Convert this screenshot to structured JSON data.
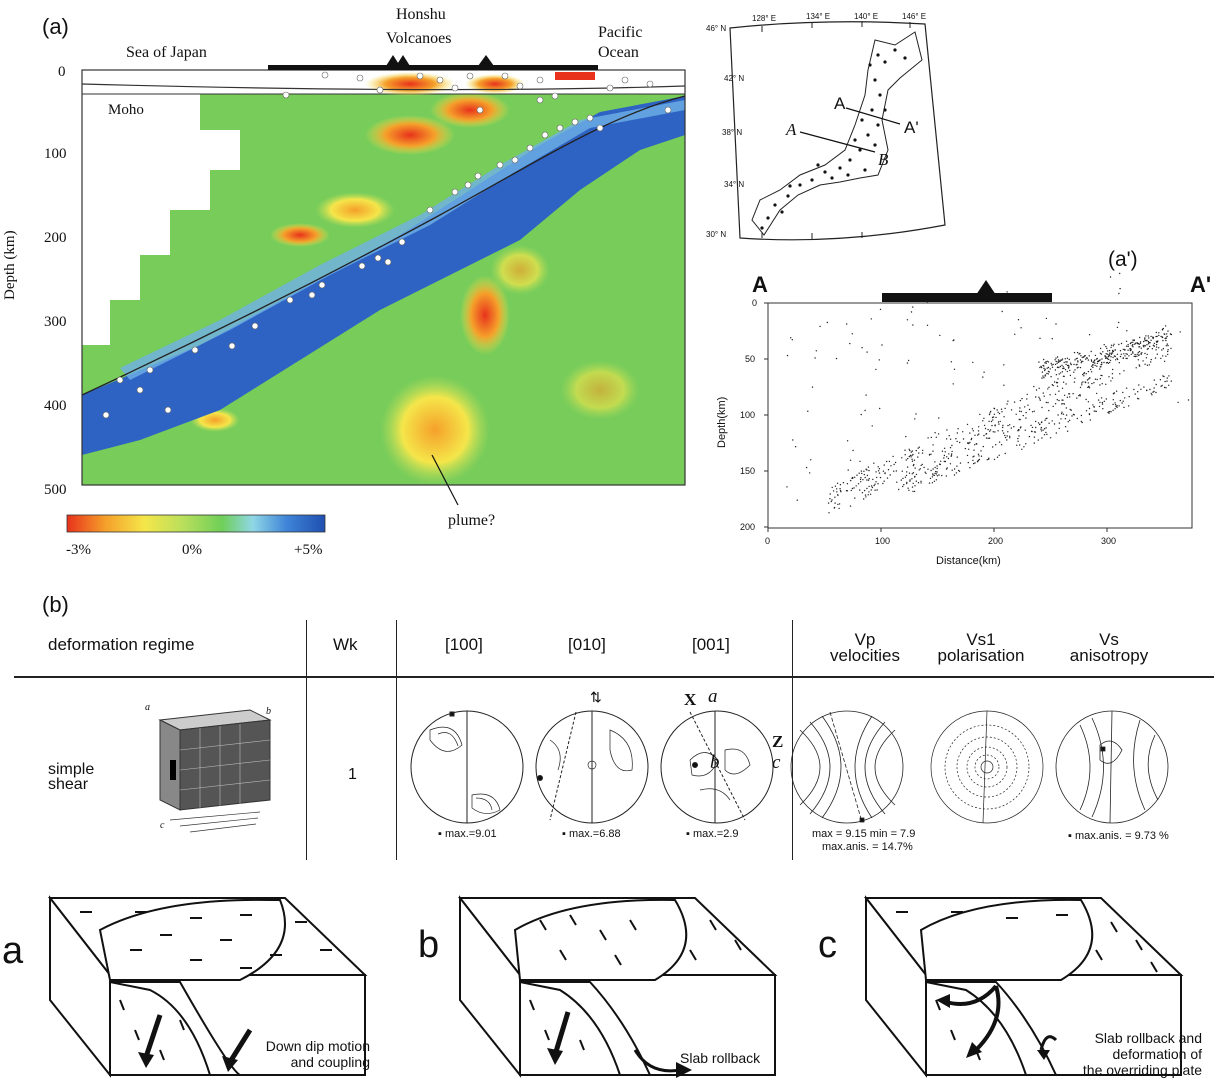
{
  "panel_a": {
    "label": "(a)",
    "sea_of_japan": "Sea of Japan",
    "honshu": "Honshu",
    "volcanoes": "Volcanoes",
    "pacific": "Pacific",
    "ocean": "Ocean",
    "moho": "Moho",
    "ylabel": "Depth (km)",
    "yticks": [
      "0",
      "100",
      "200",
      "300",
      "400",
      "500"
    ],
    "plume": "plume?",
    "colorbar": {
      "min": "-3%",
      "mid": "0%",
      "max": "+5%",
      "colors": [
        "#e8321c",
        "#f5a02a",
        "#f5e64a",
        "#b9df5c",
        "#6fcf58",
        "#8fd7e6",
        "#3f85d8",
        "#1f4fb0"
      ]
    }
  },
  "map": {
    "lon_labels": [
      "128° E",
      "134° E",
      "140° E",
      "146° E"
    ],
    "lat_labels": [
      "46° N",
      "42° N",
      "38° N",
      "34° N",
      "30° N"
    ],
    "section_labels": [
      "A",
      "A'",
      "A",
      "B"
    ]
  },
  "panel_a_prime": {
    "label": "(a')",
    "left_end": "A",
    "right_end": "A'",
    "ylabel": "Depth(km)",
    "xlabel": "Distance(km)",
    "xticks": [
      "0",
      "100",
      "200",
      "300"
    ],
    "yticks": [
      "0",
      "50",
      "100",
      "150",
      "200"
    ]
  },
  "panel_b": {
    "label": "(b)",
    "headers": {
      "regime": "deformation regime",
      "wk": "Wk",
      "h100": "[100]",
      "h010": "[010]",
      "h001": "[001]",
      "vp_1": "Vp",
      "vp_2": "velocities",
      "vs1_1": "Vs1",
      "vs1_2": "polarisation",
      "vs_1": "Vs",
      "vs_2": "anisotropy"
    },
    "row_regime_1": "simple",
    "row_regime_2": "shear",
    "wk_value": "1",
    "max_100": "max.=9.01",
    "max_010": "max.=6.88",
    "max_001": "max.=2.9",
    "vp_stats_1": "max = 9.15  min = 7.9",
    "vp_stats_2": "max.anis. = 14.7%",
    "vs_stats": "max.anis. = 9.73  %",
    "axis_labels": {
      "x": "X",
      "a": "a",
      "z": "Z",
      "c": "c",
      "b": "b"
    },
    "block_labels": {
      "a": "a",
      "b": "b",
      "c": "c"
    }
  },
  "scenarios": [
    {
      "letter": "a",
      "caption_1": "Down dip motion",
      "caption_2": "and coupling"
    },
    {
      "letter": "b",
      "caption_1": "Slab rollback",
      "caption_2": ""
    },
    {
      "letter": "c",
      "caption_1": "Slab rollback and",
      "caption_2": "deformation of",
      "caption_3": "the overriding plate"
    }
  ]
}
